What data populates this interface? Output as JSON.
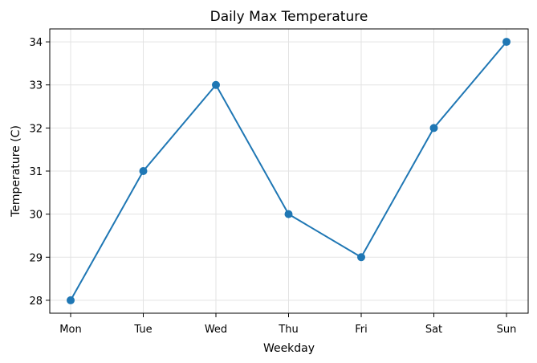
{
  "chart_data": {
    "type": "line",
    "title": "Daily Max Temperature",
    "xlabel": "Weekday",
    "ylabel": "Temperature (C)",
    "categories": [
      "Mon",
      "Tue",
      "Wed",
      "Thu",
      "Fri",
      "Sat",
      "Sun"
    ],
    "series": [
      {
        "values": [
          28,
          31,
          33,
          30,
          29,
          32,
          34
        ],
        "color": "#1f77b4",
        "marker": "circle"
      }
    ],
    "ylim": [
      27.7,
      34.3
    ],
    "yticks": [
      28,
      29,
      30,
      31,
      32,
      33,
      34
    ],
    "grid": true,
    "legend": "none"
  }
}
